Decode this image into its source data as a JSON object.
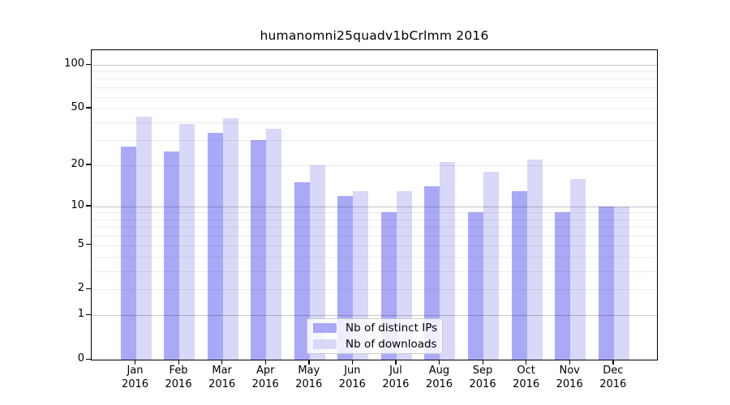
{
  "title": "humanomni25quadv1bCrlmm 2016",
  "legend": {
    "items": [
      {
        "label": "Nb of distinct IPs",
        "color": "#a9a9f8"
      },
      {
        "label": "Nb of downloads",
        "color": "#d8d8f8"
      }
    ]
  },
  "axes": {
    "y_tick_labels": [
      "100",
      "50",
      "20",
      "10",
      "5",
      "2",
      "1",
      "0"
    ],
    "y_tick_values": [
      100,
      50,
      20,
      10,
      5,
      2,
      1,
      0
    ],
    "x_months": [
      "Jan",
      "Feb",
      "Mar",
      "Apr",
      "May",
      "Jun",
      "Jul",
      "Aug",
      "Sep",
      "Oct",
      "Nov",
      "Dec"
    ],
    "x_year": "2016"
  },
  "chart_data": {
    "type": "bar",
    "title": "humanomni25quadv1bCrlmm 2016",
    "categories": [
      "Jan 2016",
      "Feb 2016",
      "Mar 2016",
      "Apr 2016",
      "May 2016",
      "Jun 2016",
      "Jul 2016",
      "Aug 2016",
      "Sep 2016",
      "Oct 2016",
      "Nov 2016",
      "Dec 2016"
    ],
    "series": [
      {
        "name": "Nb of distinct IPs",
        "color": "#a9a9f8",
        "values": [
          27,
          25,
          34,
          30,
          15,
          12,
          9,
          14,
          9,
          13,
          9,
          10
        ]
      },
      {
        "name": "Nb of downloads",
        "color": "#d8d8f8",
        "values": [
          44,
          39,
          43,
          36,
          20,
          13,
          13,
          21,
          18,
          22,
          16,
          10
        ]
      }
    ],
    "xlabel": "",
    "ylabel": "",
    "yscale": "log1p",
    "ylim": [
      0,
      115
    ],
    "y_ticks": [
      0,
      1,
      2,
      5,
      10,
      20,
      50,
      100
    ],
    "major_gridlines": [
      1,
      10,
      100
    ],
    "minor_gridlines": [
      2,
      3,
      4,
      5,
      6,
      7,
      8,
      9,
      20,
      30,
      40,
      50,
      60,
      70,
      80,
      90
    ],
    "grid": true,
    "legend_position": "inside-bottom-center"
  }
}
